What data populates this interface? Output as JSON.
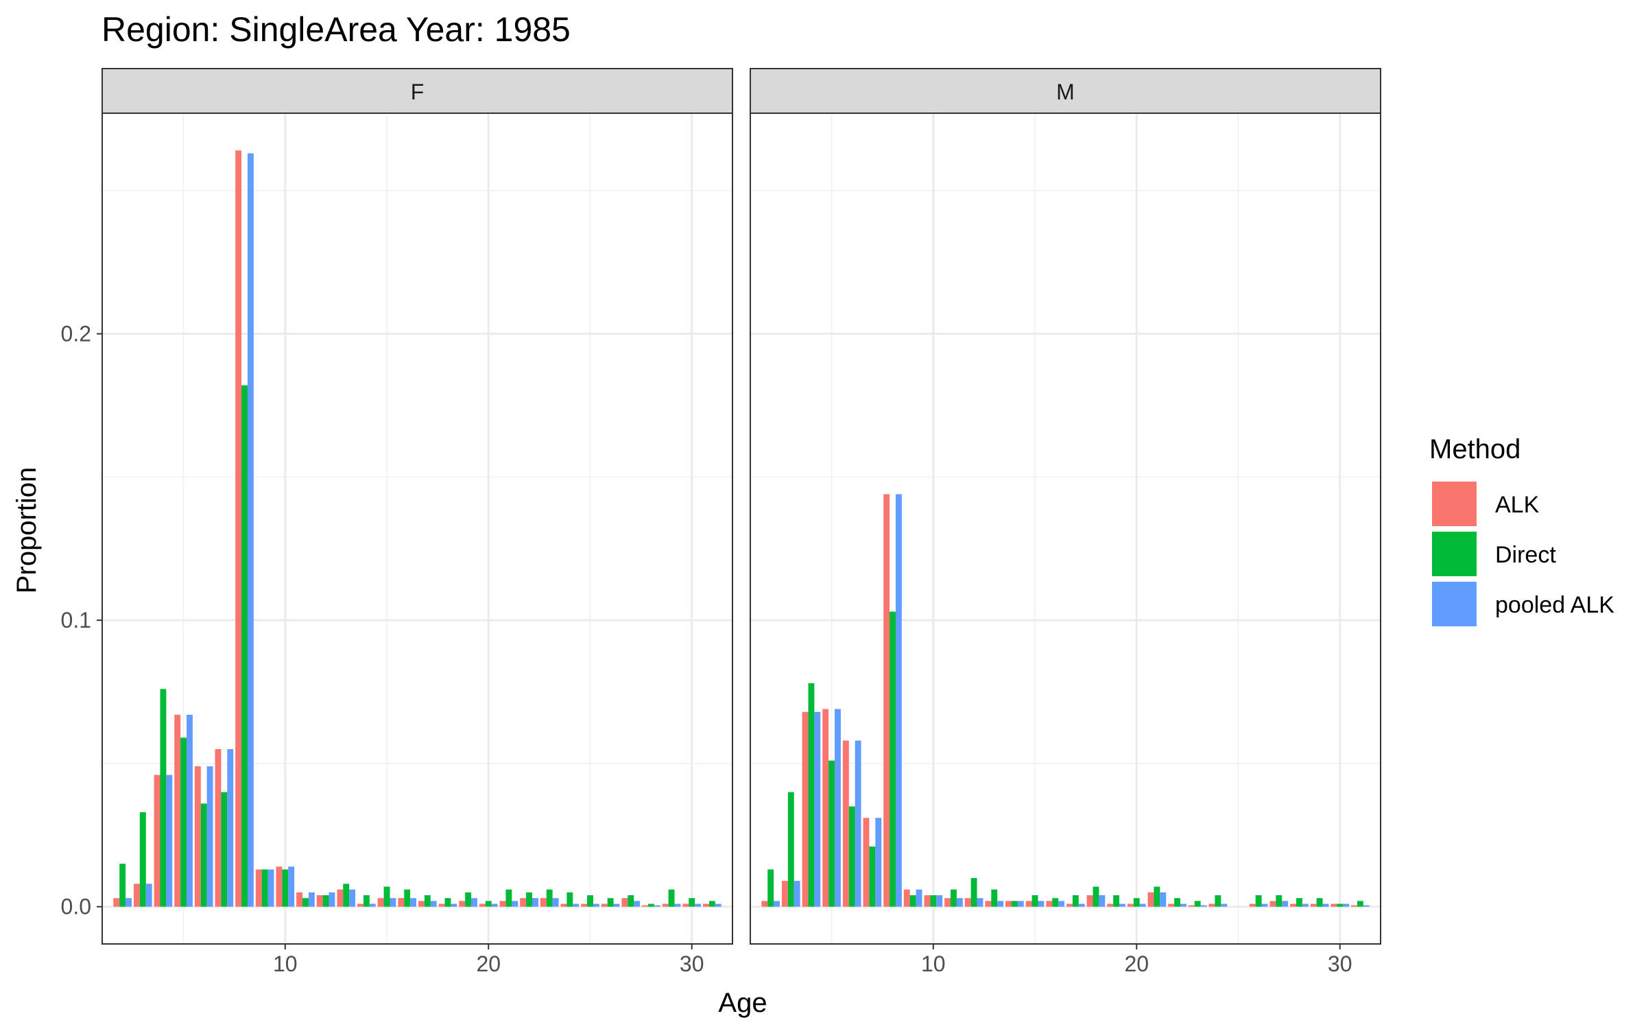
{
  "chart_data": {
    "type": "bar",
    "title": "Region: SingleArea Year: 1985",
    "xlabel": "Age",
    "ylabel": "Proportion",
    "xlim": [
      1,
      32
    ],
    "ylim": [
      -0.013,
      0.277
    ],
    "x_ticks": [
      10,
      20,
      30
    ],
    "x_tick_labels": [
      "10",
      "20",
      "30"
    ],
    "y_ticks": [
      0.0,
      0.1,
      0.2
    ],
    "y_tick_labels": [
      "0.0",
      "0.1",
      "0.2"
    ],
    "grid": true,
    "legend": {
      "title": "Method",
      "position": "right",
      "entries": [
        "ALK",
        "Direct",
        "pooled ALK"
      ]
    },
    "colors": {
      "ALK": "#F8766D",
      "Direct": "#00BA38",
      "pooled ALK": "#619CFF"
    },
    "x": [
      2,
      3,
      4,
      5,
      6,
      7,
      8,
      9,
      10,
      11,
      12,
      13,
      14,
      15,
      16,
      17,
      18,
      19,
      20,
      21,
      22,
      23,
      24,
      25,
      26,
      27,
      28,
      29,
      30,
      31
    ],
    "panels": [
      {
        "label": "F",
        "series": [
          {
            "name": "ALK",
            "values": [
              0.003,
              0.008,
              0.046,
              0.067,
              0.049,
              0.055,
              0.264,
              0.013,
              0.014,
              0.005,
              0.004,
              0.006,
              0.001,
              0.003,
              0.003,
              0.002,
              0.001,
              0.002,
              0.001,
              0.002,
              0.003,
              0.003,
              0.001,
              0.001,
              0.001,
              0.003,
              0.0005,
              0.001,
              0.001,
              0.001
            ]
          },
          {
            "name": "Direct",
            "values": [
              0.015,
              0.033,
              0.076,
              0.059,
              0.036,
              0.04,
              0.182,
              0.013,
              0.013,
              0.003,
              0.004,
              0.008,
              0.004,
              0.007,
              0.006,
              0.004,
              0.003,
              0.005,
              0.002,
              0.006,
              0.005,
              0.006,
              0.005,
              0.004,
              0.003,
              0.004,
              0.001,
              0.006,
              0.003,
              0.002
            ]
          },
          {
            "name": "pooled ALK",
            "values": [
              0.003,
              0.008,
              0.046,
              0.067,
              0.049,
              0.055,
              0.263,
              0.013,
              0.014,
              0.005,
              0.005,
              0.006,
              0.001,
              0.003,
              0.003,
              0.002,
              0.001,
              0.003,
              0.001,
              0.002,
              0.003,
              0.003,
              0.001,
              0.001,
              0.001,
              0.002,
              0.0005,
              0.001,
              0.001,
              0.001
            ]
          }
        ]
      },
      {
        "label": "M",
        "series": [
          {
            "name": "ALK",
            "values": [
              0.002,
              0.009,
              0.068,
              0.069,
              0.058,
              0.031,
              0.144,
              0.006,
              0.004,
              0.003,
              0.003,
              0.002,
              0.002,
              0.002,
              0.002,
              0.001,
              0.004,
              0.001,
              0.001,
              0.005,
              0.001,
              0.0005,
              0.001,
              0,
              0.001,
              0.002,
              0.001,
              0.001,
              0.001,
              0.0005
            ]
          },
          {
            "name": "Direct",
            "values": [
              0.013,
              0.04,
              0.078,
              0.051,
              0.035,
              0.021,
              0.103,
              0.004,
              0.004,
              0.006,
              0.01,
              0.006,
              0.002,
              0.004,
              0.003,
              0.004,
              0.007,
              0.004,
              0.003,
              0.007,
              0.003,
              0.002,
              0.004,
              0,
              0.004,
              0.004,
              0.003,
              0.003,
              0.001,
              0.002
            ]
          },
          {
            "name": "pooled ALK",
            "values": [
              0.002,
              0.009,
              0.068,
              0.069,
              0.058,
              0.031,
              0.144,
              0.006,
              0.004,
              0.003,
              0.003,
              0.002,
              0.002,
              0.002,
              0.002,
              0.001,
              0.004,
              0.001,
              0.001,
              0.005,
              0.001,
              0.0005,
              0.001,
              0,
              0.001,
              0.002,
              0.001,
              0.001,
              0.001,
              0.0005
            ]
          }
        ]
      }
    ]
  }
}
